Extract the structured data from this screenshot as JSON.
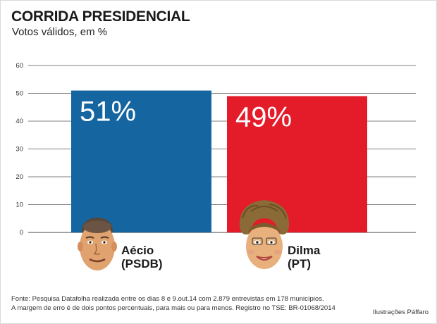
{
  "header": {
    "title": "CORRIDA PRESIDENCIAL",
    "subtitle": "Votos válidos, em %"
  },
  "chart_data": {
    "type": "bar",
    "title": "CORRIDA PRESIDENCIAL",
    "subtitle": "Votos válidos, em %",
    "categories": [
      "Aécio (PSDB)",
      "Dilma (PT)"
    ],
    "values": [
      51,
      49
    ],
    "value_labels": [
      "51%",
      "49%"
    ],
    "colors": [
      "#1565a0",
      "#e41c2a"
    ],
    "ylim": [
      0,
      60
    ],
    "yticks": [
      "0",
      "10",
      "20",
      "30",
      "40",
      "50",
      "60"
    ],
    "grid": true,
    "xlabel": "",
    "ylabel": ""
  },
  "candidates": [
    {
      "name": "Aécio",
      "party": "(PSDB)",
      "icon": "caricature-aecio-icon"
    },
    {
      "name": "Dilma",
      "party": "(PT)",
      "icon": "caricature-dilma-icon"
    }
  ],
  "footer": {
    "source": "Fonte: Pesquisa Datafolha realizada entre os dias 8 e 9.out.14 com 2.879 entrevistas em 178 municípios.",
    "margin": "A margem de erro é de dois pontos percentuais, para mais ou para menos. Registro no TSE: BR-01068/2014",
    "credit": "Ilustrações Páffaro"
  }
}
